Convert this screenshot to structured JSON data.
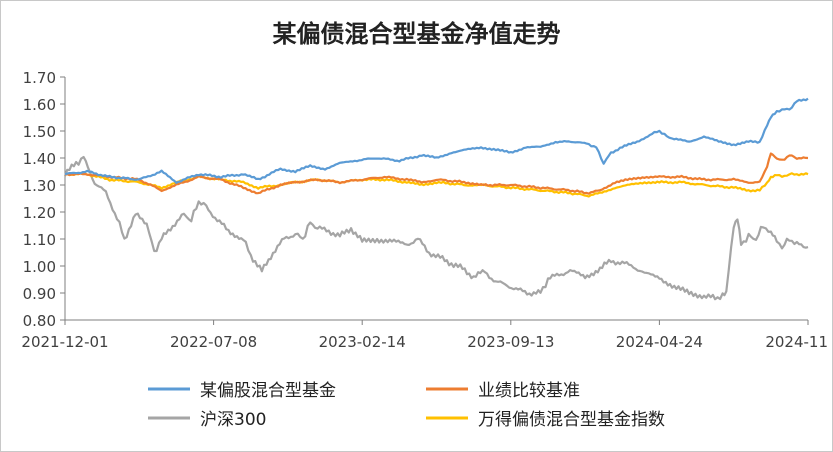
{
  "chart_data": {
    "type": "line",
    "title": "某偏债混合型基金净值走势",
    "xlabel": "",
    "ylabel": "",
    "ylim": [
      0.8,
      1.7
    ],
    "yticks": [
      "1.70",
      "1.60",
      "1.50",
      "1.40",
      "1.30",
      "1.20",
      "1.10",
      "1.00",
      "0.90",
      "0.80"
    ],
    "xticks": [
      "2021-12-01",
      "2022-07-08",
      "2023-02-14",
      "2023-09-13",
      "2024-04-24",
      "2024-11"
    ],
    "grid": false,
    "legend_position": "bottom",
    "x_index_range": [
      0,
      1000
    ],
    "series": [
      {
        "name": "某偏股混合型基金",
        "color": "#5b9bd5",
        "points": [
          [
            0,
            1.34
          ],
          [
            30,
            1.35
          ],
          [
            60,
            1.33
          ],
          [
            100,
            1.32
          ],
          [
            130,
            1.35
          ],
          [
            150,
            1.31
          ],
          [
            180,
            1.34
          ],
          [
            210,
            1.33
          ],
          [
            240,
            1.34
          ],
          [
            260,
            1.32
          ],
          [
            290,
            1.36
          ],
          [
            310,
            1.35
          ],
          [
            330,
            1.37
          ],
          [
            350,
            1.36
          ],
          [
            370,
            1.38
          ],
          [
            390,
            1.39
          ],
          [
            420,
            1.4
          ],
          [
            450,
            1.39
          ],
          [
            480,
            1.41
          ],
          [
            500,
            1.4
          ],
          [
            520,
            1.42
          ],
          [
            540,
            1.43
          ],
          [
            560,
            1.44
          ],
          [
            580,
            1.43
          ],
          [
            600,
            1.42
          ],
          [
            620,
            1.44
          ],
          [
            640,
            1.44
          ],
          [
            660,
            1.46
          ],
          [
            690,
            1.46
          ],
          [
            705,
            1.45
          ],
          [
            715,
            1.44
          ],
          [
            725,
            1.38
          ],
          [
            735,
            1.42
          ],
          [
            750,
            1.44
          ],
          [
            770,
            1.46
          ],
          [
            790,
            1.49
          ],
          [
            800,
            1.5
          ],
          [
            810,
            1.48
          ],
          [
            820,
            1.47
          ],
          [
            840,
            1.46
          ],
          [
            860,
            1.48
          ],
          [
            880,
            1.46
          ],
          [
            900,
            1.45
          ],
          [
            920,
            1.46
          ],
          [
            935,
            1.46
          ],
          [
            945,
            1.52
          ],
          [
            950,
            1.55
          ],
          [
            958,
            1.57
          ],
          [
            965,
            1.58
          ],
          [
            975,
            1.58
          ],
          [
            985,
            1.61
          ],
          [
            1000,
            1.62
          ]
        ]
      },
      {
        "name": "业绩比较基准",
        "color": "#ed7d31",
        "points": [
          [
            0,
            1.34
          ],
          [
            30,
            1.34
          ],
          [
            60,
            1.33
          ],
          [
            100,
            1.32
          ],
          [
            130,
            1.28
          ],
          [
            150,
            1.3
          ],
          [
            180,
            1.33
          ],
          [
            210,
            1.32
          ],
          [
            240,
            1.29
          ],
          [
            260,
            1.27
          ],
          [
            290,
            1.3
          ],
          [
            310,
            1.31
          ],
          [
            340,
            1.32
          ],
          [
            370,
            1.31
          ],
          [
            400,
            1.32
          ],
          [
            430,
            1.33
          ],
          [
            460,
            1.32
          ],
          [
            480,
            1.31
          ],
          [
            500,
            1.32
          ],
          [
            540,
            1.31
          ],
          [
            560,
            1.3
          ],
          [
            600,
            1.3
          ],
          [
            640,
            1.29
          ],
          [
            680,
            1.28
          ],
          [
            705,
            1.27
          ],
          [
            720,
            1.28
          ],
          [
            740,
            1.31
          ],
          [
            760,
            1.32
          ],
          [
            780,
            1.33
          ],
          [
            800,
            1.33
          ],
          [
            830,
            1.33
          ],
          [
            860,
            1.32
          ],
          [
            900,
            1.32
          ],
          [
            920,
            1.31
          ],
          [
            935,
            1.31
          ],
          [
            945,
            1.37
          ],
          [
            950,
            1.42
          ],
          [
            958,
            1.4
          ],
          [
            965,
            1.39
          ],
          [
            975,
            1.41
          ],
          [
            985,
            1.4
          ],
          [
            1000,
            1.4
          ]
        ]
      },
      {
        "name": "沪深300",
        "color": "#a5a5a5",
        "points": [
          [
            0,
            1.34
          ],
          [
            15,
            1.38
          ],
          [
            25,
            1.4
          ],
          [
            40,
            1.31
          ],
          [
            55,
            1.27
          ],
          [
            70,
            1.18
          ],
          [
            80,
            1.1
          ],
          [
            95,
            1.19
          ],
          [
            110,
            1.16
          ],
          [
            120,
            1.05
          ],
          [
            130,
            1.1
          ],
          [
            145,
            1.15
          ],
          [
            160,
            1.19
          ],
          [
            170,
            1.17
          ],
          [
            180,
            1.24
          ],
          [
            190,
            1.22
          ],
          [
            205,
            1.17
          ],
          [
            220,
            1.13
          ],
          [
            240,
            1.1
          ],
          [
            250,
            1.04
          ],
          [
            265,
            0.98
          ],
          [
            280,
            1.05
          ],
          [
            295,
            1.1
          ],
          [
            310,
            1.12
          ],
          [
            320,
            1.1
          ],
          [
            330,
            1.16
          ],
          [
            340,
            1.14
          ],
          [
            355,
            1.13
          ],
          [
            370,
            1.11
          ],
          [
            385,
            1.14
          ],
          [
            400,
            1.09
          ],
          [
            420,
            1.1
          ],
          [
            440,
            1.09
          ],
          [
            460,
            1.08
          ],
          [
            475,
            1.1
          ],
          [
            490,
            1.05
          ],
          [
            505,
            1.03
          ],
          [
            520,
            1.01
          ],
          [
            535,
            0.99
          ],
          [
            550,
            0.96
          ],
          [
            565,
            0.98
          ],
          [
            580,
            0.94
          ],
          [
            595,
            0.93
          ],
          [
            610,
            0.91
          ],
          [
            625,
            0.9
          ],
          [
            640,
            0.9
          ],
          [
            650,
            0.95
          ],
          [
            665,
            0.97
          ],
          [
            680,
            0.98
          ],
          [
            700,
            0.96
          ],
          [
            720,
            0.99
          ],
          [
            735,
            1.02
          ],
          [
            750,
            1.01
          ],
          [
            765,
            1.0
          ],
          [
            780,
            0.97
          ],
          [
            800,
            0.96
          ],
          [
            820,
            0.92
          ],
          [
            840,
            0.9
          ],
          [
            860,
            0.89
          ],
          [
            875,
            0.88
          ],
          [
            885,
            0.89
          ],
          [
            890,
            0.9
          ],
          [
            900,
            1.15
          ],
          [
            905,
            1.18
          ],
          [
            910,
            1.08
          ],
          [
            920,
            1.11
          ],
          [
            930,
            1.1
          ],
          [
            940,
            1.15
          ],
          [
            950,
            1.12
          ],
          [
            958,
            1.09
          ],
          [
            965,
            1.07
          ],
          [
            975,
            1.1
          ],
          [
            985,
            1.08
          ],
          [
            1000,
            1.07
          ]
        ]
      },
      {
        "name": "万得偏债混合型基金指数",
        "color": "#ffc000",
        "points": [
          [
            0,
            1.34
          ],
          [
            30,
            1.34
          ],
          [
            60,
            1.32
          ],
          [
            100,
            1.31
          ],
          [
            130,
            1.29
          ],
          [
            150,
            1.31
          ],
          [
            180,
            1.33
          ],
          [
            210,
            1.32
          ],
          [
            240,
            1.31
          ],
          [
            260,
            1.29
          ],
          [
            290,
            1.3
          ],
          [
            310,
            1.31
          ],
          [
            340,
            1.32
          ],
          [
            370,
            1.31
          ],
          [
            400,
            1.32
          ],
          [
            430,
            1.32
          ],
          [
            460,
            1.31
          ],
          [
            480,
            1.3
          ],
          [
            500,
            1.31
          ],
          [
            540,
            1.3
          ],
          [
            560,
            1.3
          ],
          [
            600,
            1.29
          ],
          [
            640,
            1.28
          ],
          [
            680,
            1.27
          ],
          [
            705,
            1.26
          ],
          [
            720,
            1.27
          ],
          [
            740,
            1.29
          ],
          [
            760,
            1.3
          ],
          [
            780,
            1.31
          ],
          [
            800,
            1.31
          ],
          [
            830,
            1.31
          ],
          [
            860,
            1.3
          ],
          [
            900,
            1.29
          ],
          [
            920,
            1.28
          ],
          [
            935,
            1.28
          ],
          [
            945,
            1.31
          ],
          [
            950,
            1.33
          ],
          [
            958,
            1.34
          ],
          [
            965,
            1.33
          ],
          [
            975,
            1.34
          ],
          [
            985,
            1.34
          ],
          [
            1000,
            1.34
          ]
        ]
      }
    ]
  }
}
